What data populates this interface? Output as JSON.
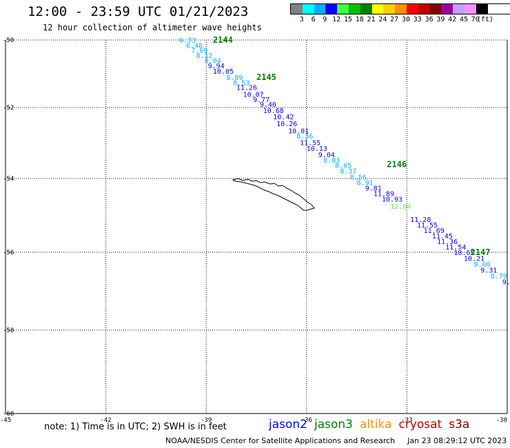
{
  "header": {
    "title": "12:00 - 23:59 UTC 01/21/2023",
    "subtitle": "12 hour collection of altimeter wave heights"
  },
  "legend": {
    "colors": [
      "#808080",
      "#00ffff",
      "#00b0ff",
      "#0000ff",
      "#40ff40",
      "#00c000",
      "#008000",
      "#ffff00",
      "#ffd000",
      "#ff9000",
      "#ff0000",
      "#c00000",
      "#800000",
      "#a000a0",
      "#c0a0ff",
      "#ff90ff",
      "#000000"
    ],
    "labels": [
      "3",
      "6",
      "9",
      "12",
      "15",
      "18",
      "21",
      "24",
      "27",
      "30",
      "33",
      "36",
      "39",
      "42",
      "45",
      "70",
      "(ft)"
    ]
  },
  "axes": {
    "lat_labels": [
      "-50",
      "-52",
      "-54",
      "-56",
      "-58",
      "-60"
    ],
    "lon_labels": [
      "-45",
      "-42",
      "-39",
      "-36",
      "-33",
      "-30"
    ]
  },
  "tracks": [
    {
      "label": "2144",
      "lat": -50.0,
      "lon": -38.8
    },
    {
      "label": "2145",
      "lat": -51.1,
      "lon": -37.5
    },
    {
      "label": "2146",
      "lat": -53.6,
      "lon": -33.6
    },
    {
      "label": "2147",
      "lat": -56.0,
      "lon": -31.1
    }
  ],
  "observations": [
    {
      "v": "6.73",
      "lat": -50.0,
      "lon": -39.8,
      "c": "#00b0ff"
    },
    {
      "v": "6.48",
      "lat": -50.15,
      "lon": -39.6,
      "c": "#00b0ff"
    },
    {
      "v": "7.69",
      "lat": -50.3,
      "lon": -39.45,
      "c": "#00b0ff"
    },
    {
      "v": "8.12",
      "lat": -50.45,
      "lon": -39.3,
      "c": "#00b0ff"
    },
    {
      "v": "8.04",
      "lat": -50.6,
      "lon": -39.05,
      "c": "#00b0ff"
    },
    {
      "v": "9.94",
      "lat": -50.75,
      "lon": -38.95,
      "c": "#0000ff"
    },
    {
      "v": "10.05",
      "lat": -50.92,
      "lon": -38.8,
      "c": "#0000ff"
    },
    {
      "v": "8.89",
      "lat": -51.1,
      "lon": -38.4,
      "c": "#00b0ff"
    },
    {
      "v": "8.53",
      "lat": -51.25,
      "lon": -38.2,
      "c": "#00b0ff"
    },
    {
      "v": "11.26",
      "lat": -51.4,
      "lon": -38.1,
      "c": "#0000ff"
    },
    {
      "v": "10.07",
      "lat": -51.6,
      "lon": -37.9,
      "c": "#0000ff"
    },
    {
      "v": "9.77",
      "lat": -51.75,
      "lon": -37.6,
      "c": "#0000ff"
    },
    {
      "v": "9.40",
      "lat": -51.9,
      "lon": -37.4,
      "c": "#0000ff"
    },
    {
      "v": "10.68",
      "lat": -52.08,
      "lon": -37.3,
      "c": "#0000ff"
    },
    {
      "v": "10.42",
      "lat": -52.25,
      "lon": -37.0,
      "c": "#0000ff"
    },
    {
      "v": "10.26",
      "lat": -52.45,
      "lon": -36.9,
      "c": "#0000ff"
    },
    {
      "v": "10.01",
      "lat": -52.65,
      "lon": -36.55,
      "c": "#0000ff"
    },
    {
      "v": "8.36",
      "lat": -52.8,
      "lon": -36.3,
      "c": "#00b0ff"
    },
    {
      "v": "11.55",
      "lat": -52.98,
      "lon": -36.2,
      "c": "#0000ff"
    },
    {
      "v": "10.13",
      "lat": -53.15,
      "lon": -36.0,
      "c": "#0000ff"
    },
    {
      "v": "9.04",
      "lat": -53.32,
      "lon": -35.65,
      "c": "#0000ff"
    },
    {
      "v": "8.03",
      "lat": -53.48,
      "lon": -35.5,
      "c": "#00b0ff"
    },
    {
      "v": "8.65",
      "lat": -53.62,
      "lon": -35.15,
      "c": "#00b0ff"
    },
    {
      "v": "8.37",
      "lat": -53.78,
      "lon": -35.0,
      "c": "#00b0ff"
    },
    {
      "v": "8.56",
      "lat": -53.95,
      "lon": -34.7,
      "c": "#00b0ff"
    },
    {
      "v": "8.91",
      "lat": -54.1,
      "lon": -34.5,
      "c": "#00b0ff"
    },
    {
      "v": "9.81",
      "lat": -54.25,
      "lon": -34.25,
      "c": "#0000ff"
    },
    {
      "v": "11.89",
      "lat": -54.4,
      "lon": -34.0,
      "c": "#0000ff"
    },
    {
      "v": "10.93",
      "lat": -54.55,
      "lon": -33.75,
      "c": "#0000ff"
    },
    {
      "v": "12.04",
      "lat": -54.75,
      "lon": -33.5,
      "c": "#40ff40"
    },
    {
      "v": "11.28",
      "lat": -55.1,
      "lon": -32.9,
      "c": "#0000ff"
    },
    {
      "v": "11.55",
      "lat": -55.25,
      "lon": -32.7,
      "c": "#0000ff"
    },
    {
      "v": "11.69",
      "lat": -55.4,
      "lon": -32.5,
      "c": "#0000ff"
    },
    {
      "v": "11.45",
      "lat": -55.55,
      "lon": -32.25,
      "c": "#0000ff"
    },
    {
      "v": "11.36",
      "lat": -55.7,
      "lon": -32.1,
      "c": "#0000ff"
    },
    {
      "v": "11.54",
      "lat": -55.85,
      "lon": -31.85,
      "c": "#0000ff"
    },
    {
      "v": "10.65",
      "lat": -56.0,
      "lon": -31.6,
      "c": "#0000ff"
    },
    {
      "v": "10.21",
      "lat": -56.15,
      "lon": -31.3,
      "c": "#0000ff"
    },
    {
      "v": "9.00",
      "lat": -56.3,
      "lon": -31.0,
      "c": "#00b0ff"
    },
    {
      "v": "9.31",
      "lat": -56.45,
      "lon": -30.8,
      "c": "#0000ff"
    },
    {
      "v": "8.79",
      "lat": -56.6,
      "lon": -30.5,
      "c": "#00b0ff"
    },
    {
      "v": "9.",
      "lat": -56.75,
      "lon": -30.15,
      "c": "#0000ff"
    }
  ],
  "footer": {
    "note": "note: 1) Time is in UTC; 2) SWH is in feet",
    "satellites": [
      {
        "name": "jason2",
        "color": "#0000ff"
      },
      {
        "name": "jason3",
        "color": "#008000"
      },
      {
        "name": "altika",
        "color": "#ff9000"
      },
      {
        "name": "cryosat",
        "color": "#c00000"
      },
      {
        "name": "s3a",
        "color": "#800000"
      }
    ],
    "credit": "NOAA/NESDIS Center for Satellite Applications and Research",
    "timestamp": "Jan 23 08:29:12 UTC 2023"
  }
}
